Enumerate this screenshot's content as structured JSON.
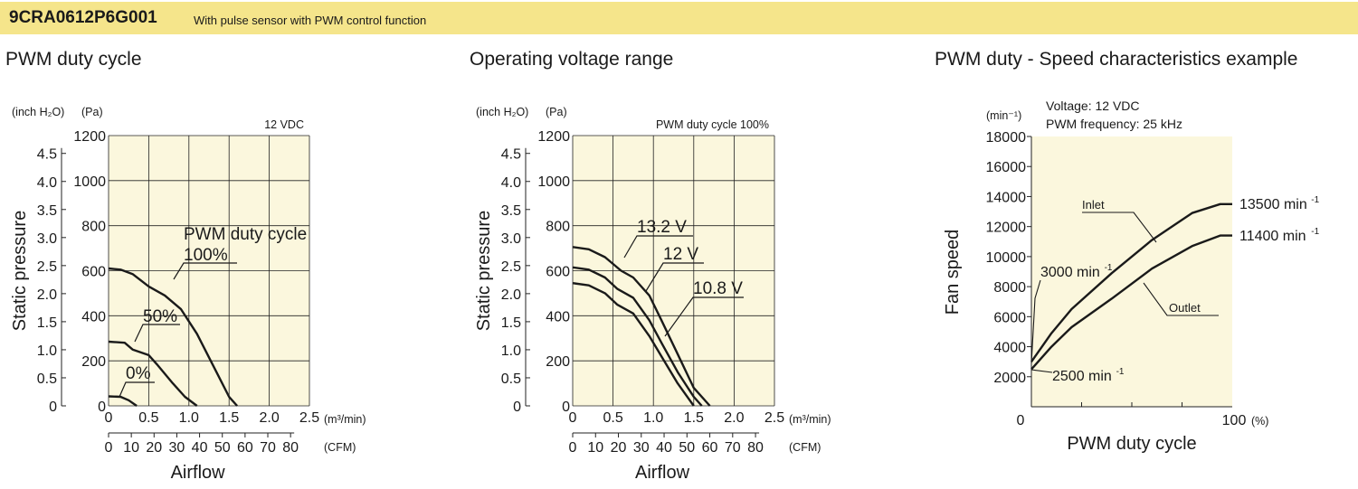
{
  "header": {
    "model": "9CRA0612P6G001",
    "subtitle": "With pulse sensor with PWM control function"
  },
  "colors": {
    "header_bg": "#f5e58b",
    "plot_bg": "#fbf7dd",
    "line": "#1a1a1a"
  },
  "chart_data": [
    {
      "type": "line",
      "title": "PWM duty cycle",
      "annotation": "12 VDC",
      "ylabel": "Static pressure",
      "xlabel": "Airflow",
      "y_unit_inch": "(inch H₂O)",
      "y_unit_pa": "(Pa)",
      "x_unit_m3": "(m³/min)",
      "x_unit_cfm": "(CFM)",
      "ylim": [
        0,
        1200
      ],
      "xlim": [
        0,
        2.5
      ],
      "grid": true,
      "y_ticks_pa": [
        "0",
        "200",
        "400",
        "600",
        "800",
        "1000",
        "1200"
      ],
      "y_ticks_inch": [
        "0",
        "0.5",
        "1.0",
        "1.5",
        "2.0",
        "2.5",
        "3.0",
        "3.5",
        "4.0",
        "4.5"
      ],
      "x_ticks_m3": [
        "0",
        "0.5",
        "1.0",
        "1.5",
        "2.0",
        "2.5"
      ],
      "x_ticks_cfm": [
        "0",
        "10",
        "20",
        "30",
        "40",
        "50",
        "60",
        "70",
        "80"
      ],
      "legend_header": "PWM duty cycle",
      "series": [
        {
          "name": "100%",
          "x": [
            0,
            0.15,
            0.3,
            0.5,
            0.7,
            0.9,
            1.1,
            1.3,
            1.5,
            1.6
          ],
          "y": [
            610,
            605,
            585,
            530,
            490,
            430,
            320,
            180,
            40,
            0
          ]
        },
        {
          "name": "50%",
          "x": [
            0,
            0.2,
            0.3,
            0.5,
            0.6,
            0.8,
            0.95,
            1.1
          ],
          "y": [
            285,
            280,
            250,
            225,
            185,
            100,
            40,
            0
          ]
        },
        {
          "name": "0%",
          "x": [
            0,
            0.15,
            0.25,
            0.35
          ],
          "y": [
            42,
            40,
            25,
            0
          ]
        }
      ]
    },
    {
      "type": "line",
      "title": "Operating voltage range",
      "annotation": "PWM duty cycle 100%",
      "ylabel": "Static pressure",
      "xlabel": "Airflow",
      "y_unit_inch": "(inch H₂O)",
      "y_unit_pa": "(Pa)",
      "x_unit_m3": "(m³/min)",
      "x_unit_cfm": "(CFM)",
      "ylim": [
        0,
        1200
      ],
      "xlim": [
        0,
        2.5
      ],
      "grid": true,
      "y_ticks_pa": [
        "0",
        "200",
        "400",
        "600",
        "800",
        "1000",
        "1200"
      ],
      "y_ticks_inch": [
        "0",
        "0.5",
        "1.0",
        "1.5",
        "2.0",
        "2.5",
        "3.0",
        "3.5",
        "4.0",
        "4.5"
      ],
      "x_ticks_m3": [
        "0",
        "0.5",
        "1.0",
        "1.5",
        "2.0",
        "2.5"
      ],
      "x_ticks_cfm": [
        "0",
        "10",
        "20",
        "30",
        "40",
        "50",
        "60",
        "70",
        "80"
      ],
      "series": [
        {
          "name": "13.2 V",
          "x": [
            0,
            0.2,
            0.4,
            0.6,
            0.75,
            0.95,
            1.1,
            1.3,
            1.5,
            1.7
          ],
          "y": [
            705,
            695,
            660,
            600,
            570,
            490,
            380,
            230,
            80,
            0
          ]
        },
        {
          "name": "12 V",
          "x": [
            0,
            0.2,
            0.4,
            0.55,
            0.75,
            0.95,
            1.1,
            1.3,
            1.5,
            1.6
          ],
          "y": [
            615,
            605,
            570,
            520,
            480,
            380,
            280,
            150,
            40,
            0
          ]
        },
        {
          "name": "10.8 V",
          "x": [
            0,
            0.2,
            0.4,
            0.55,
            0.75,
            0.95,
            1.1,
            1.3,
            1.5
          ],
          "y": [
            545,
            535,
            500,
            450,
            410,
            310,
            220,
            100,
            0
          ]
        }
      ]
    },
    {
      "type": "line",
      "title": "PWM duty - Speed characteristics example",
      "annotation_voltage": "Voltage: 12 VDC",
      "annotation_freq": "PWM frequency: 25 kHz",
      "ylabel": "Fan speed",
      "xlabel": "PWM duty cycle",
      "y_unit": "(min⁻¹)",
      "x_unit": "(%)",
      "ylim": [
        0,
        18000
      ],
      "xlim": [
        0,
        100
      ],
      "grid": true,
      "y_ticks": [
        "2000",
        "4000",
        "6000",
        "8000",
        "10000",
        "12000",
        "14000",
        "16000",
        "18000"
      ],
      "x_ticks": [
        "0",
        "100"
      ],
      "labels": {
        "inlet_speed": "13500 min",
        "outlet_speed": "11400 min",
        "inlet_start": "3000 min",
        "outlet_start": "2500 min",
        "exp": "-1"
      },
      "series": [
        {
          "name": "Inlet",
          "x": [
            0,
            10,
            20,
            40,
            60,
            80,
            94,
            100
          ],
          "y": [
            3000,
            4900,
            6500,
            8900,
            11100,
            12900,
            13500,
            13500
          ]
        },
        {
          "name": "Outlet",
          "x": [
            0,
            10,
            20,
            40,
            60,
            80,
            94,
            100
          ],
          "y": [
            2500,
            4000,
            5300,
            7200,
            9200,
            10700,
            11400,
            11400
          ]
        }
      ]
    }
  ]
}
